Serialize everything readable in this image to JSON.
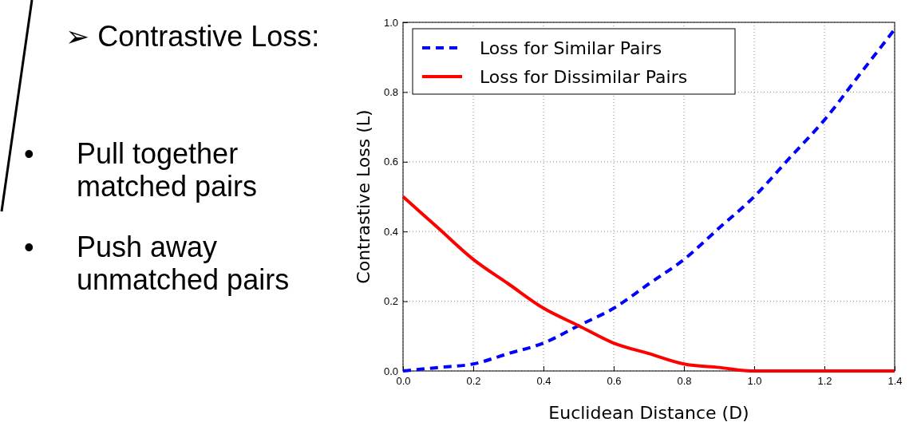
{
  "chart_data": {
    "type": "line",
    "xlabel": "Euclidean Distance (D)",
    "ylabel": "Contrastive Loss (L)",
    "x": [
      0,
      0.1,
      0.2,
      0.3,
      0.4,
      0.5,
      0.6,
      0.7,
      0.8,
      0.9,
      1.0,
      1.1,
      1.2,
      1.3,
      1.4
    ],
    "series": [
      {
        "name": "Loss for Similar Pairs",
        "color": "#0000ff",
        "line_style": "dashed",
        "values": [
          0,
          0.01,
          0.02,
          0.05,
          0.08,
          0.13,
          0.18,
          0.25,
          0.32,
          0.41,
          0.5,
          0.61,
          0.72,
          0.85,
          0.98
        ]
      },
      {
        "name": "Loss for Dissimilar Pairs",
        "color": "#ff0000",
        "line_style": "solid",
        "values": [
          0.5,
          0.41,
          0.32,
          0.25,
          0.18,
          0.13,
          0.08,
          0.05,
          0.02,
          0.01,
          0,
          0,
          0,
          0,
          0
        ]
      }
    ],
    "xlim": [
      0,
      1.4
    ],
    "xticks": [
      {
        "value": 0,
        "label": "0.0"
      },
      0.2,
      0.4,
      0.6,
      0.8,
      {
        "value": 1,
        "label": "1.0"
      },
      1.2,
      1.4
    ],
    "ylim": [
      0,
      1
    ],
    "yticks": [
      {
        "value": 0,
        "label": "0.0"
      },
      0.2,
      0.4,
      0.6,
      0.8,
      {
        "value": 1,
        "label": "1.0"
      }
    ],
    "grid": true,
    "legend": "top left",
    "annotations": [
      "➢  Contrastive Loss:",
      "•    Pull together matched pairs",
      "•    Push away unmatched pairs"
    ]
  }
}
